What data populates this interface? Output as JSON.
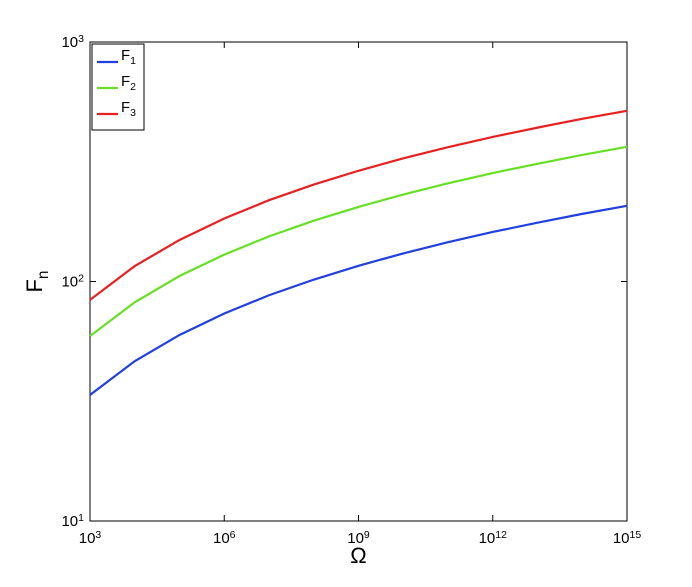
{
  "chart_data": {
    "type": "line",
    "xlabel": "Ω",
    "ylabel": "F_n",
    "x": [
      1000.0,
      10000.0,
      100000.0,
      1000000.0,
      10000000.0,
      100000000.0,
      1000000000.0,
      10000000000.0,
      100000000000.0,
      1000000000000.0,
      10000000000000.0,
      100000000000000.0,
      1000000000000000.0
    ],
    "series": [
      {
        "name": "F_1",
        "color": "#2040e0",
        "values": [
          33.6,
          46.5,
          59.8,
          73.5,
          87.6,
          101.8,
          116.3,
          131,
          145.9,
          161,
          176,
          191.6,
          207
        ]
      },
      {
        "name": "F_2",
        "color": "#66e024",
        "values": [
          59.2,
          81.9,
          105.4,
          129.5,
          154.3,
          179.4,
          204.9,
          230.8,
          257,
          283.7,
          310.1,
          337.6,
          365
        ]
      },
      {
        "name": "F_3",
        "color": "#e82020",
        "values": [
          83.8,
          116,
          149.1,
          183.3,
          218.5,
          253.9,
          290,
          326.7,
          363.9,
          401.5,
          439,
          477.8,
          516
        ]
      }
    ],
    "xscale": "log",
    "yscale": "log",
    "xlim": [
      1000.0,
      1000000000000000.0
    ],
    "ylim": [
      10,
      1000
    ],
    "xticks": [
      {
        "value": 1000.0,
        "label": "10^3"
      },
      {
        "value": 1000000.0,
        "label": "10^6"
      },
      {
        "value": 1000000000.0,
        "label": "10^9"
      },
      {
        "value": 1000000000000.0,
        "label": "10^12"
      },
      {
        "value": 1000000000000000.0,
        "label": "10^15"
      }
    ],
    "yticks": [
      {
        "value": 10,
        "label": "10^1"
      },
      {
        "value": 100,
        "label": "10^2"
      },
      {
        "value": 1000,
        "label": "10^3"
      }
    ],
    "legend": "upper-left"
  }
}
